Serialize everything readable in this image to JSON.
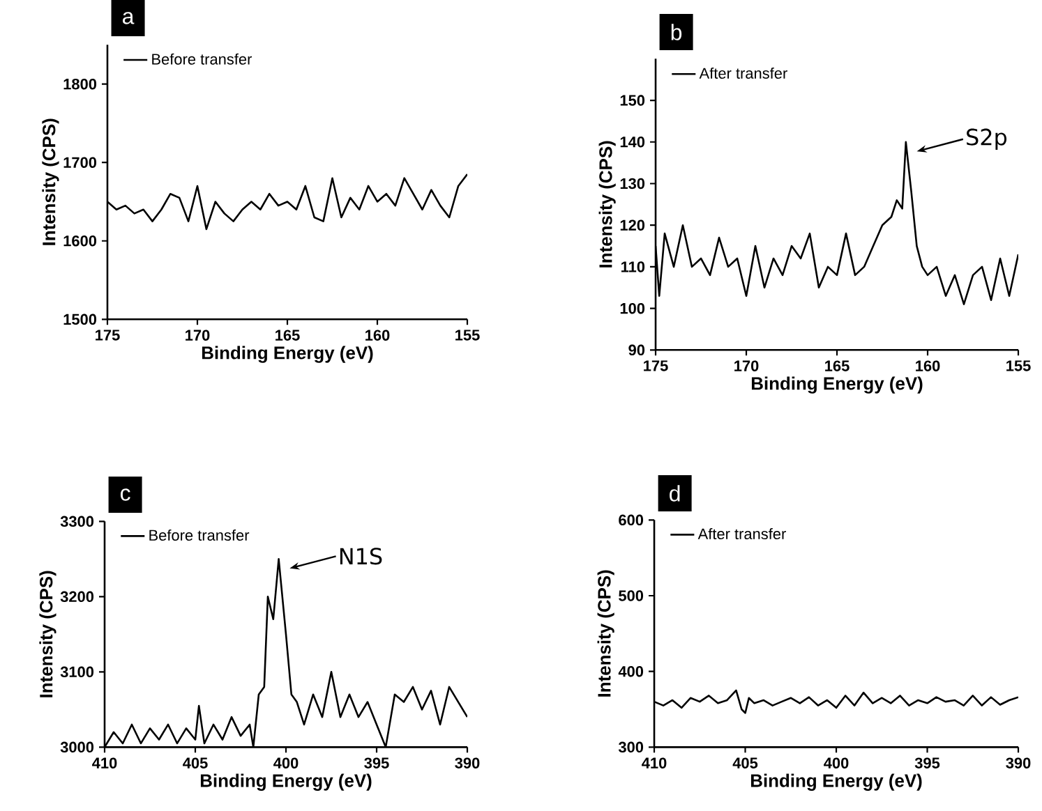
{
  "chart_data": [
    {
      "type": "line",
      "title": "a",
      "xlabel": "Binding Energy (eV)",
      "ylabel": "Intensity (CPS)",
      "xlim": [
        175,
        155
      ],
      "xticks": [
        175,
        170,
        165,
        160,
        155
      ],
      "ylim": [
        1500,
        1850
      ],
      "yticks": [
        1500,
        1600,
        1700,
        1800
      ],
      "legend": "top left",
      "x": [
        175,
        174.5,
        174,
        173.5,
        173,
        172.5,
        172,
        171.5,
        171,
        170.5,
        170,
        169.5,
        169,
        168.5,
        168,
        167.5,
        167,
        166.5,
        166,
        165.5,
        165,
        164.5,
        164,
        163.5,
        163,
        162.5,
        162,
        161.5,
        161,
        160.5,
        160,
        159.5,
        159,
        158.5,
        158,
        157.5,
        157,
        156.5,
        156,
        155.5,
        155
      ],
      "series": [
        {
          "name": "Before transfer",
          "color": "#000000",
          "values": [
            1650,
            1640,
            1645,
            1635,
            1640,
            1625,
            1640,
            1660,
            1655,
            1625,
            1670,
            1615,
            1650,
            1635,
            1625,
            1640,
            1650,
            1640,
            1660,
            1645,
            1650,
            1640,
            1670,
            1630,
            1625,
            1680,
            1630,
            1655,
            1640,
            1670,
            1650,
            1660,
            1645,
            1680,
            1660,
            1640,
            1665,
            1645,
            1630,
            1670,
            1685
          ]
        }
      ]
    },
    {
      "type": "line",
      "title": "b",
      "xlabel": "Binding Energy (eV)",
      "ylabel": "Intensity (CPS)",
      "xlim": [
        175,
        155
      ],
      "xticks": [
        175,
        170,
        165,
        160,
        155
      ],
      "ylim": [
        90,
        160
      ],
      "yticks": [
        90,
        100,
        110,
        120,
        130,
        140,
        150
      ],
      "legend": "top left",
      "annotations": [
        {
          "text": "S2p",
          "x": 161.2,
          "y": 140
        }
      ],
      "x": [
        175,
        174.8,
        174.5,
        174,
        173.5,
        173,
        172.5,
        172,
        171.5,
        171,
        170.5,
        170,
        169.5,
        169,
        168.5,
        168,
        167.5,
        167,
        166.5,
        166,
        165.5,
        165,
        164.5,
        164,
        163.5,
        163,
        162.5,
        162,
        161.7,
        161.4,
        161.2,
        160.9,
        160.6,
        160.3,
        160,
        159.5,
        159,
        158.5,
        158,
        157.5,
        157,
        156.5,
        156,
        155.5,
        155
      ],
      "series": [
        {
          "name": "After transfer",
          "color": "#000000",
          "values": [
            115,
            103,
            118,
            110,
            120,
            110,
            112,
            108,
            117,
            110,
            112,
            103,
            115,
            105,
            112,
            108,
            115,
            112,
            118,
            105,
            110,
            108,
            118,
            108,
            110,
            115,
            120,
            122,
            126,
            124,
            140,
            128,
            115,
            110,
            108,
            110,
            103,
            108,
            101,
            108,
            110,
            102,
            112,
            103,
            113
          ]
        }
      ]
    },
    {
      "type": "line",
      "title": "c",
      "xlabel": "Binding Energy (eV)",
      "ylabel": "Intensity (CPS)",
      "xlim": [
        410,
        390
      ],
      "xticks": [
        410,
        405,
        400,
        395,
        390
      ],
      "ylim": [
        3000,
        3300
      ],
      "yticks": [
        3000,
        3100,
        3200,
        3300
      ],
      "legend": "top left",
      "annotations": [
        {
          "text": "N1S",
          "x": 400.4,
          "y": 3250
        }
      ],
      "x": [
        410,
        409.5,
        409,
        408.5,
        408,
        407.5,
        407,
        406.5,
        406,
        405.5,
        405,
        404.8,
        404.5,
        404,
        403.5,
        403,
        402.5,
        402,
        401.8,
        401.5,
        401.2,
        401,
        400.7,
        400.4,
        400,
        399.7,
        399.4,
        399,
        398.5,
        398,
        397.5,
        397,
        396.5,
        396,
        395.5,
        395,
        394.5,
        394,
        393.5,
        393,
        392.5,
        392,
        391.5,
        391,
        390.5,
        390
      ],
      "series": [
        {
          "name": "Before transfer",
          "color": "#000000",
          "values": [
            3000,
            3020,
            3005,
            3030,
            3005,
            3025,
            3010,
            3030,
            3005,
            3025,
            3010,
            3055,
            3005,
            3030,
            3010,
            3040,
            3015,
            3030,
            3000,
            3070,
            3080,
            3200,
            3170,
            3250,
            3150,
            3070,
            3060,
            3030,
            3070,
            3040,
            3100,
            3040,
            3070,
            3040,
            3060,
            3030,
            3000,
            3070,
            3060,
            3080,
            3050,
            3075,
            3030,
            3080,
            3060,
            3040
          ]
        }
      ]
    },
    {
      "type": "line",
      "title": "d",
      "xlabel": "Binding Energy (eV)",
      "ylabel": "Intensity (CPS)",
      "xlim": [
        410,
        390
      ],
      "xticks": [
        410,
        405,
        400,
        395,
        390
      ],
      "ylim": [
        300,
        600
      ],
      "yticks": [
        300,
        400,
        500,
        600
      ],
      "legend": "top left",
      "x": [
        410,
        409.5,
        409,
        408.5,
        408,
        407.5,
        407,
        406.5,
        406,
        405.5,
        405.2,
        405,
        404.8,
        404.5,
        404,
        403.5,
        403,
        402.5,
        402,
        401.5,
        401,
        400.5,
        400,
        399.5,
        399,
        398.5,
        398,
        397.5,
        397,
        396.5,
        396,
        395.5,
        395,
        394.5,
        394,
        393.5,
        393,
        392.5,
        392,
        391.5,
        391,
        390.5,
        390
      ],
      "series": [
        {
          "name": "After transfer",
          "color": "#000000",
          "values": [
            360,
            355,
            362,
            352,
            365,
            360,
            368,
            358,
            362,
            375,
            350,
            345,
            365,
            358,
            362,
            355,
            360,
            365,
            358,
            366,
            355,
            362,
            352,
            368,
            355,
            372,
            358,
            365,
            358,
            368,
            355,
            362,
            358,
            366,
            360,
            362,
            355,
            368,
            355,
            366,
            356,
            362,
            366
          ]
        }
      ]
    }
  ]
}
